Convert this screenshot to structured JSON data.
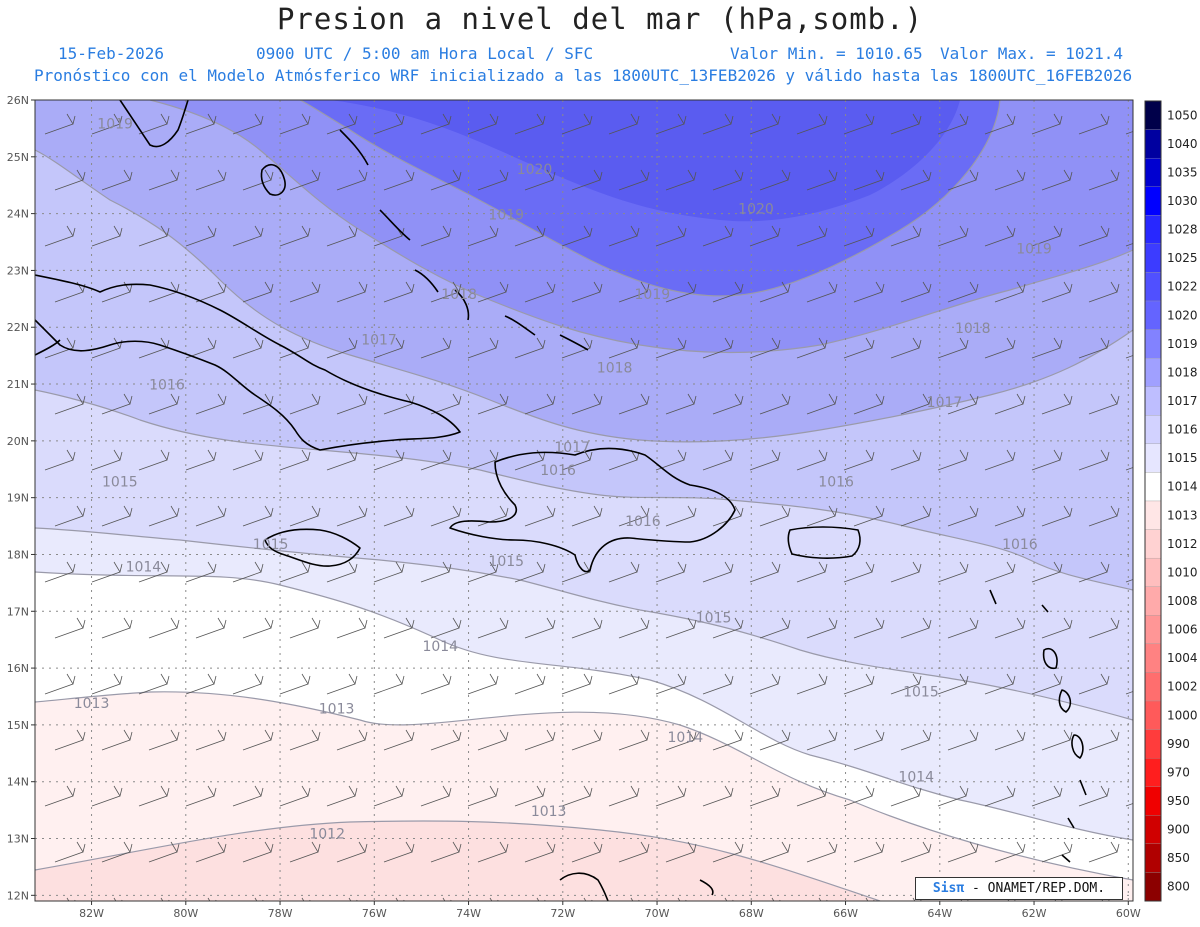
{
  "title": "Presion a nivel del mar (hPa,somb.)",
  "subtitle": {
    "date": "15-Feb-2026",
    "time": "0900 UTC / 5:00 am Hora Local / SFC",
    "min": "Valor Min. = 1010.65",
    "max": "Valor Max. = 1021.4",
    "model": "Pronóstico con el Modelo Atmósferico WRF inicializado a las 1800UTC_13FEB2026 y válido hasta las  1800UTC_16FEB2026"
  },
  "map": {
    "lon_range": [
      -83.2,
      -59.9
    ],
    "lat_range": [
      11.9,
      26.0
    ],
    "lon_ticks": [
      "82W",
      "80W",
      "78W",
      "76W",
      "74W",
      "72W",
      "70W",
      "68W",
      "66W",
      "64W",
      "62W",
      "60W"
    ],
    "lat_ticks": [
      "26N",
      "25N",
      "24N",
      "23N",
      "22N",
      "21N",
      "20N",
      "19N",
      "18N",
      "17N",
      "16N",
      "15N",
      "14N",
      "13N",
      "12N"
    ],
    "bands": [
      {
        "level": 1020,
        "color": "#6a6cf5"
      },
      {
        "level": 1019,
        "color": "#9091f6"
      },
      {
        "level": 1018,
        "color": "#aaacf7"
      },
      {
        "level": 1017,
        "color": "#c4c6fa"
      },
      {
        "level": 1016,
        "color": "#dadbfc"
      },
      {
        "level": 1015,
        "color": "#e9eafd"
      },
      {
        "level": 1014,
        "color": "#ffffff"
      },
      {
        "level": 1013,
        "color": "#fff0f0"
      },
      {
        "level": 1012,
        "color": "#fde0e0"
      }
    ],
    "contour_labels": [
      {
        "text": "1019",
        "lon": -81.5,
        "lat": 25.5
      },
      {
        "text": "1020",
        "lon": -72.6,
        "lat": 24.7
      },
      {
        "text": "1019",
        "lon": -73.2,
        "lat": 23.9
      },
      {
        "text": "1020",
        "lon": -67.9,
        "lat": 24.0
      },
      {
        "text": "1019",
        "lon": -62.0,
        "lat": 23.3
      },
      {
        "text": "1018",
        "lon": -74.2,
        "lat": 22.5
      },
      {
        "text": "1019",
        "lon": -70.1,
        "lat": 22.5
      },
      {
        "text": "1018",
        "lon": -63.3,
        "lat": 21.9
      },
      {
        "text": "1017",
        "lon": -75.9,
        "lat": 21.7
      },
      {
        "text": "1018",
        "lon": -70.9,
        "lat": 21.2
      },
      {
        "text": "1016",
        "lon": -80.4,
        "lat": 20.9
      },
      {
        "text": "1017",
        "lon": -63.9,
        "lat": 20.6
      },
      {
        "text": "1017",
        "lon": -71.8,
        "lat": 19.8
      },
      {
        "text": "1016",
        "lon": -72.1,
        "lat": 19.4
      },
      {
        "text": "1016",
        "lon": -66.2,
        "lat": 19.2
      },
      {
        "text": "1015",
        "lon": -81.4,
        "lat": 19.2
      },
      {
        "text": "1016",
        "lon": -70.3,
        "lat": 18.5
      },
      {
        "text": "1015",
        "lon": -78.2,
        "lat": 18.1
      },
      {
        "text": "1016",
        "lon": -62.3,
        "lat": 18.1
      },
      {
        "text": "1015",
        "lon": -73.2,
        "lat": 17.8
      },
      {
        "text": "1014",
        "lon": -80.9,
        "lat": 17.7
      },
      {
        "text": "1015",
        "lon": -68.8,
        "lat": 16.8
      },
      {
        "text": "1014",
        "lon": -74.6,
        "lat": 16.3
      },
      {
        "text": "1015",
        "lon": -64.4,
        "lat": 15.5
      },
      {
        "text": "1013",
        "lon": -82.0,
        "lat": 15.3
      },
      {
        "text": "1013",
        "lon": -76.8,
        "lat": 15.2
      },
      {
        "text": "1014",
        "lon": -69.4,
        "lat": 14.7
      },
      {
        "text": "1014",
        "lon": -64.5,
        "lat": 14.0
      },
      {
        "text": "1013",
        "lon": -72.3,
        "lat": 13.4
      },
      {
        "text": "1012",
        "lon": -77.0,
        "lat": 13.0
      }
    ]
  },
  "colorbar": {
    "levels": [
      "1050",
      "1040",
      "1035",
      "1030",
      "1028",
      "1025",
      "1022",
      "1020",
      "1019",
      "1018",
      "1017",
      "1016",
      "1015",
      "1014",
      "1013",
      "1012",
      "1010",
      "1008",
      "1006",
      "1004",
      "1002",
      "1000",
      "990",
      "970",
      "950",
      "900",
      "850",
      "800"
    ],
    "colors": [
      "#00004a",
      "#0000a0",
      "#0000d0",
      "#0000ff",
      "#2828ff",
      "#3c3cff",
      "#5050ff",
      "#6464ff",
      "#8282ff",
      "#a0a0ff",
      "#bebeff",
      "#d2d2ff",
      "#e6e6ff",
      "#ffffff",
      "#ffe6e6",
      "#ffd2d2",
      "#ffbebe",
      "#ffaaaa",
      "#ff9696",
      "#ff8282",
      "#ff6e6e",
      "#ff5a5a",
      "#ff3c3c",
      "#ff1e1e",
      "#f00000",
      "#d00000",
      "#b00000",
      "#8c0000"
    ]
  },
  "credit": {
    "brand": "Sisπ",
    "org": " - ONAMET/REP.DOM."
  }
}
